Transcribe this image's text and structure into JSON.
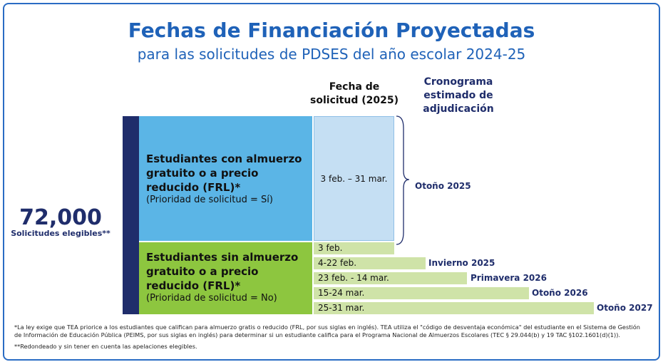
{
  "header": {
    "title": "Fechas de Financiación Proyectadas",
    "subtitle": "para las solicitudes de PDSES del año escolar 2024-25"
  },
  "total": {
    "value": "72,000",
    "label": "Solicitudes elegibles**"
  },
  "columns": {
    "date": [
      "Fecha de",
      "solicitud (2025)"
    ],
    "schedule": [
      "Cronograma",
      "estimado de",
      "adjudicación"
    ]
  },
  "groups": [
    {
      "title": [
        "Estudiantes con almuerzo",
        "gratuito o a precio",
        "reducido (FRL)*"
      ],
      "priority": "(Prioridad de solicitud = Sí)",
      "date": "3 feb. – 31 mar.",
      "schedule": "Otoño 2025"
    },
    {
      "title": [
        "Estudiantes sin almuerzo",
        "gratuito o a precio",
        "reducido (FRL)*"
      ],
      "priority": "(Prioridad de solicitud = No)",
      "rows": [
        {
          "date": "3 feb."
        },
        {
          "date": "4-22 feb.",
          "schedule": "Invierno 2025"
        },
        {
          "date": "23 feb. - 14 mar.",
          "schedule": "Primavera 2026"
        },
        {
          "date": "15-24 mar.",
          "schedule": "Otoño 2026"
        },
        {
          "date": "25-31 mar.",
          "schedule": "Otoño 2027"
        }
      ]
    }
  ],
  "footnotes": [
    [
      "*La ley exige que TEA priorice a los estudiantes que califican para almuerzo gratis o reducido (FRL, por sus siglas en inglés). TEA utiliza el \"código de desventaja económica\" del estudiante en el Sistema de Gestión",
      "de Información de Educación Pública (PEIMS, por sus siglas en inglés) para determinar si un estudiante califica para el Programa Nacional de Almuerzos Escolares (TEC § 29.044(b) y 19 TAC §102.1601(d)(1))."
    ],
    [
      "**Redondeado y sin tener en cuenta las apelaciones elegibles."
    ]
  ]
}
